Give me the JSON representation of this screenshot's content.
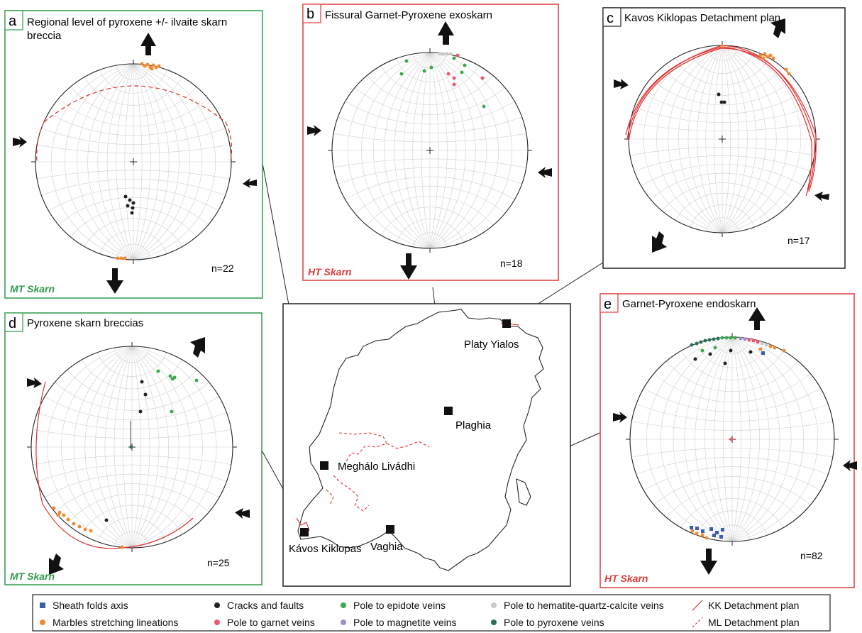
{
  "panels": [
    {
      "id": "a",
      "title_line1": "Regional level of pyroxene +/- ilvaite skarn",
      "title_line2": "breccia",
      "count": "n=22",
      "skarn": "MT Skarn"
    },
    {
      "id": "b",
      "title_line1": "Fissural Garnet-Pyroxene exoskarn",
      "title_line2": "",
      "count": "n=18",
      "skarn": "HT Skarn"
    },
    {
      "id": "c",
      "title_line1": "Kavos Kiklopas Detachment plan",
      "title_line2": "",
      "count": "n=17",
      "skarn": ""
    },
    {
      "id": "d",
      "title_line1": "Pyroxene skarn breccias",
      "title_line2": "",
      "count": "n=25",
      "skarn": "MT Skarn"
    },
    {
      "id": "e",
      "title_line1": "Garnet-Pyroxene endoskarn",
      "title_line2": "",
      "count": "n=82",
      "skarn": "HT Skarn"
    }
  ],
  "map": {
    "localities": [
      "Platy Yialos",
      "Plaghia",
      "Meghálo Livádhi",
      "Kávos Kiklopas",
      "Vaghia"
    ]
  },
  "legend": [
    {
      "label": "Sheath folds axis",
      "symbol": "square",
      "color": "#3a5fb0"
    },
    {
      "label": "Cracks and faults",
      "symbol": "dot",
      "color": "#222222"
    },
    {
      "label": "Pole to epidote veins",
      "symbol": "dot",
      "color": "#3daa4e"
    },
    {
      "label": "Pole to hematite-quartz-calcite veins",
      "symbol": "dot",
      "color": "#c8c8c8"
    },
    {
      "label": "KK Detachment plan",
      "symbol": "line",
      "color": "#e03030"
    },
    {
      "label": "Marbles stretching lineations",
      "symbol": "dot",
      "color": "#f08a30"
    },
    {
      "label": "Pole to garnet veins",
      "symbol": "dot",
      "color": "#e85a6e"
    },
    {
      "label": "Pole to magnetite veins",
      "symbol": "dot",
      "color": "#a08cc8"
    },
    {
      "label": "Pole to pyroxene veins",
      "symbol": "dot",
      "color": "#2e6e5a"
    },
    {
      "label": "ML Detachment plan",
      "symbol": "dashed",
      "color": "#e03030"
    }
  ],
  "colors": {
    "mt_frame": "#2f9a4c",
    "ht_frame": "#e03a3a",
    "black_frame": "#222222",
    "net_grid": "#d0d0d0"
  }
}
